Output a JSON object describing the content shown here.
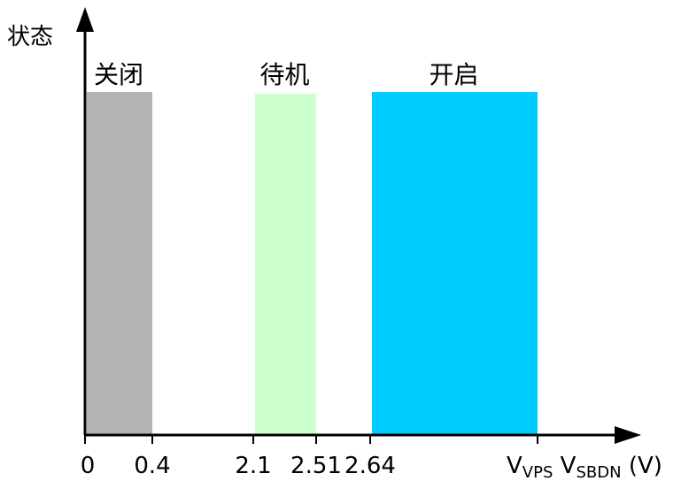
{
  "chart_data": {
    "type": "bar",
    "ylabel": "状态",
    "xlabel": {
      "prefix1": "V",
      "sub1": "VPS",
      "prefix2": " V",
      "sub2": "SBDN",
      "unit": " (V)"
    },
    "xticks": [
      {
        "value": 0,
        "label": "0"
      },
      {
        "value": 0.4,
        "label": "0.4"
      },
      {
        "value": 2.1,
        "label": "2.1"
      },
      {
        "value": 2.51,
        "label": "2.51"
      },
      {
        "value": 2.64,
        "label": "2.64"
      }
    ],
    "regions": [
      {
        "name": "关闭",
        "x_start": 0,
        "x_end": 0.4,
        "color": "#b3b3b3"
      },
      {
        "name": "待机",
        "x_start": 2.1,
        "x_end": 2.51,
        "color": "#ccffcc"
      },
      {
        "name": "开启",
        "x_start": 2.64,
        "x_end": "V_VPS",
        "color": "#00ccff"
      }
    ],
    "grid": false,
    "legend": "none"
  }
}
